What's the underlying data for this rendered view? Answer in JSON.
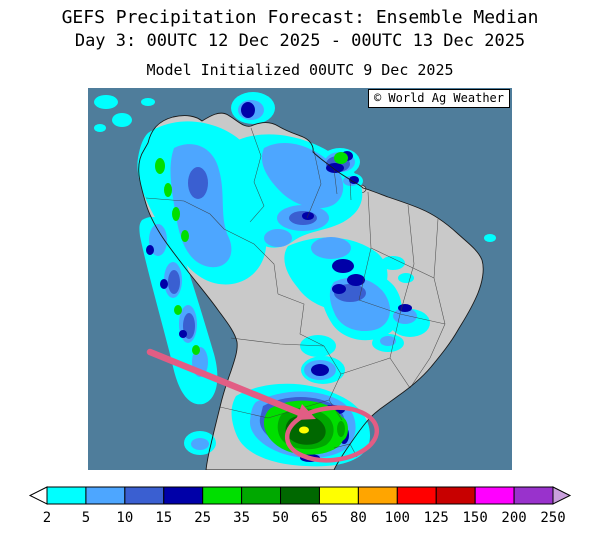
{
  "header": {
    "title": "GEFS Precipitation Forecast: Ensemble Median",
    "subtitle": "Day 3: 00UTC 12 Dec 2025 - 00UTC 13 Dec 2025",
    "init_line": "Model Initialized 00UTC 9 Dec 2025"
  },
  "map": {
    "copyright": "© World Ag Weather",
    "colors": {
      "ocean": "#4F7D9B",
      "land": "#C9C9C9",
      "coastline": "#1A1A1A",
      "border": "#3A3A3A",
      "annotation": "#E25D84"
    }
  },
  "colorbar": {
    "tick_labels": [
      "2",
      "5",
      "10",
      "15",
      "25",
      "35",
      "50",
      "65",
      "80",
      "100",
      "125",
      "150",
      "200",
      "250"
    ],
    "segment_colors": [
      "#00FFFF",
      "#4DA6FF",
      "#3A5FD1",
      "#0000A8",
      "#00DF00",
      "#00A800",
      "#006800",
      "#FFFF00",
      "#FFA500",
      "#FF0000",
      "#C80000",
      "#FF00FF",
      "#9932CC"
    ],
    "left_tip_color": "#FFFFFF",
    "right_tip_color": "#C9A0DC",
    "outline_color": "#000000"
  }
}
